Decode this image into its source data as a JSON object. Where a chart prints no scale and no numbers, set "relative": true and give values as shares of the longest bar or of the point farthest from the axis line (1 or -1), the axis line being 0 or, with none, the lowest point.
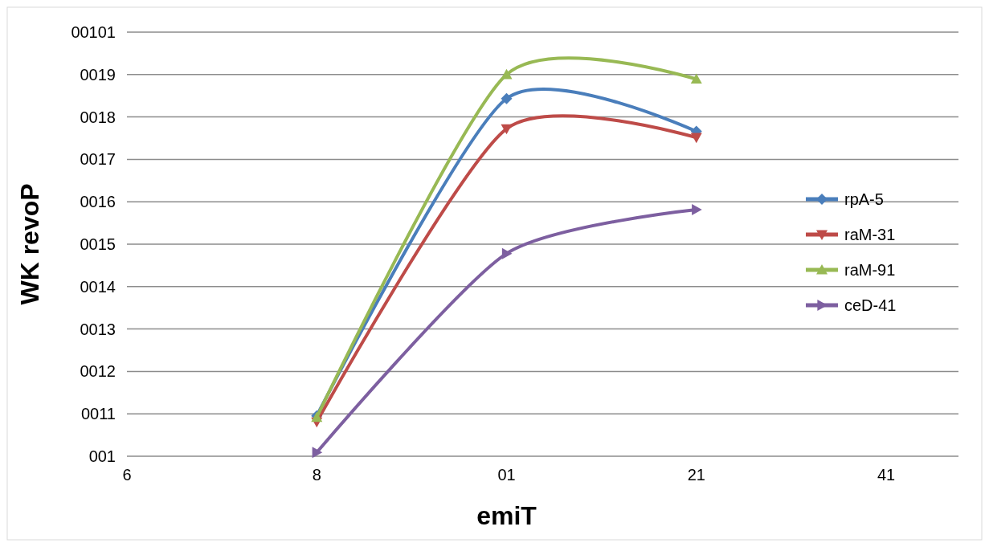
{
  "chart_data": {
    "type": "line",
    "xlabel": "emiT",
    "ylabel": "WK revoP",
    "relative": true,
    "categories": [
      "6",
      "8",
      "01",
      "21",
      "41"
    ],
    "annotations": [
      "001",
      "0011",
      "0012",
      "0013",
      "0014",
      "0015",
      "0016",
      "0017",
      "0018",
      "0019",
      "00101"
    ],
    "grid": "y",
    "legend": "right",
    "series": [
      {
        "name": "rpA-5",
        "color": "#4a7ebb",
        "marker": "diamond",
        "values": [
          null,
          0.106,
          0.937,
          0.851,
          null
        ]
      },
      {
        "name": "raM-31",
        "color": "#be4b48",
        "marker": "triangle-down",
        "values": [
          null,
          0.09,
          0.858,
          0.835,
          null
        ]
      },
      {
        "name": "raM-91",
        "color": "#98b954",
        "marker": "triangle",
        "values": [
          null,
          0.102,
          1,
          0.988,
          null
        ]
      },
      {
        "name": "ceD-41",
        "color": "#7d5fa0",
        "marker": "triangle-right",
        "values": [
          null,
          0.01,
          0.531,
          0.646,
          null
        ]
      }
    ]
  }
}
